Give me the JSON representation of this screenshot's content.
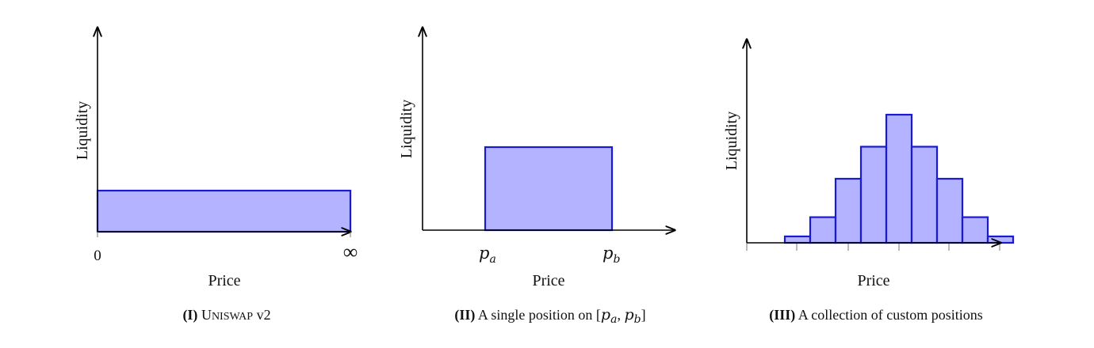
{
  "panels": [
    {
      "ylabel": "Liquidity",
      "xlabel": "Price",
      "tick_left": "0",
      "tick_right": "∞",
      "caption_num": "(I)",
      "caption_sc_first": "U",
      "caption_sc_rest": "NISWAP",
      "caption_rest": " v2"
    },
    {
      "ylabel": "Liquidity",
      "xlabel": "Price",
      "tick_a_base": "p",
      "tick_a_sub": "a",
      "tick_b_base": "p",
      "tick_b_sub": "b",
      "caption_num": "(II)",
      "caption_text": " A single position on [",
      "caption_pa": "p",
      "caption_pa_sub": "a",
      "caption_sep": ", ",
      "caption_pb": "p",
      "caption_pb_sub": "b",
      "caption_end": "]"
    },
    {
      "ylabel": "Liquidity",
      "xlabel": "Price",
      "caption_num": "(III)",
      "caption_text": " A collection of custom positions"
    }
  ],
  "colors": {
    "fill": "#b3b3ff",
    "stroke": "#1a1ad6"
  },
  "chart_data": [
    {
      "type": "bar",
      "values": [
        1
      ]
    },
    {
      "type": "bar",
      "values": [
        0,
        1,
        0
      ]
    },
    {
      "type": "bar",
      "values": [
        1,
        4,
        10,
        15,
        20,
        15,
        10,
        4,
        1
      ]
    }
  ]
}
